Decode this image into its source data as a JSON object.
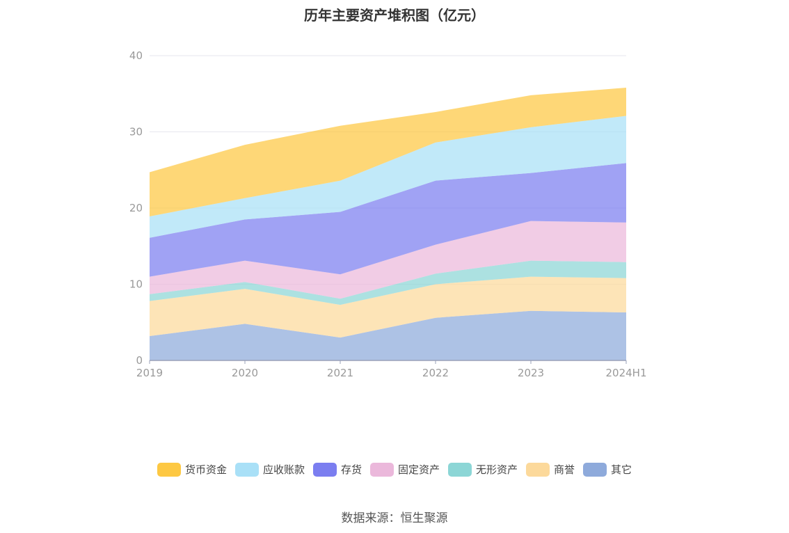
{
  "title": "历年主要资产堆积图（亿元）",
  "source": "数据来源：恒生聚源",
  "chart_data": {
    "type": "area",
    "stacked": true,
    "title": "历年主要资产堆积图（亿元）",
    "categories": [
      "2019",
      "2020",
      "2021",
      "2022",
      "2023",
      "2024H1"
    ],
    "ylim": [
      0,
      40
    ],
    "yticks": [
      0,
      10,
      20,
      30,
      40
    ],
    "grid": true,
    "legend_position": "bottom",
    "series": [
      {
        "name": "其它",
        "color": "#8eaadb",
        "values": [
          3.2,
          4.8,
          3.0,
          5.6,
          6.5,
          6.3
        ]
      },
      {
        "name": "商誉",
        "color": "#fcd99b",
        "values": [
          4.6,
          4.6,
          4.3,
          4.4,
          4.5,
          4.5
        ]
      },
      {
        "name": "无形资产",
        "color": "#8cd6d6",
        "values": [
          0.9,
          0.9,
          0.8,
          1.4,
          2.1,
          2.1
        ]
      },
      {
        "name": "固定资产",
        "color": "#ebb8db",
        "values": [
          2.3,
          2.8,
          3.2,
          3.8,
          5.2,
          5.2
        ]
      },
      {
        "name": "存货",
        "color": "#7b7ef0",
        "values": [
          5.1,
          5.4,
          8.2,
          8.4,
          6.3,
          7.8
        ]
      },
      {
        "name": "应收账款",
        "color": "#a9e0f7",
        "values": [
          2.8,
          2.8,
          4.1,
          5.0,
          6.0,
          6.2
        ]
      },
      {
        "name": "货币资金",
        "color": "#fdc843",
        "values": [
          5.8,
          7.0,
          7.2,
          4.0,
          4.2,
          3.7
        ]
      }
    ],
    "legend_order": [
      "货币资金",
      "应收账款",
      "存货",
      "固定资产",
      "无形资产",
      "商誉",
      "其它"
    ]
  }
}
